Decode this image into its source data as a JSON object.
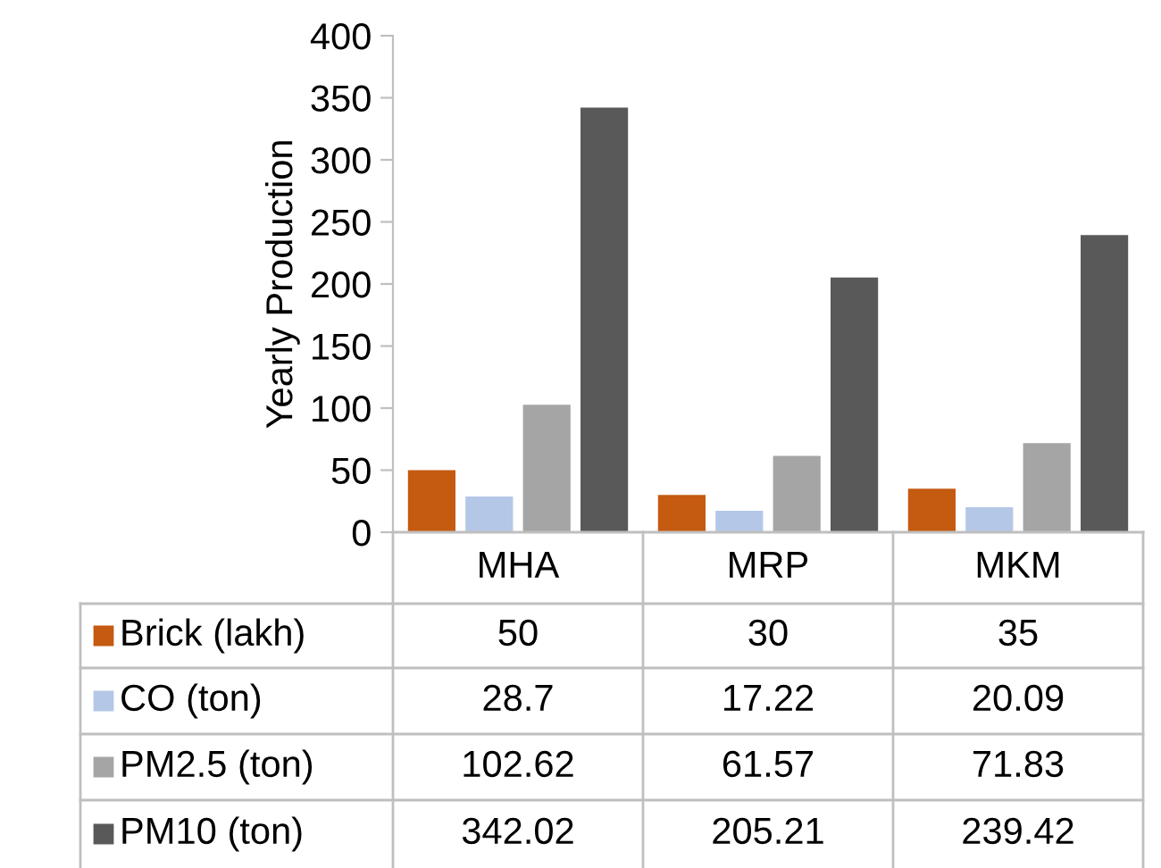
{
  "chart_data": {
    "type": "bar",
    "ylabel": "Yearly Production",
    "categories": [
      "MHA",
      "MRP",
      "MKM"
    ],
    "series": [
      {
        "name": "Brick (lakh)",
        "color": "#c55a11",
        "values": [
          50,
          30,
          35
        ]
      },
      {
        "name": "CO (ton)",
        "color": "#b4c7e7",
        "values": [
          28.7,
          17.22,
          20.09
        ]
      },
      {
        "name": "PM2.5 (ton)",
        "color": "#a5a5a5",
        "values": [
          102.62,
          61.57,
          71.83
        ]
      },
      {
        "name": "PM10 (ton)",
        "color": "#595959",
        "values": [
          342.02,
          205.21,
          239.42
        ]
      }
    ],
    "ylim": [
      0,
      400
    ],
    "yticks": [
      0,
      50,
      100,
      150,
      200,
      250,
      300,
      350,
      400
    ],
    "data_labels": true,
    "grid": false,
    "legend": "bottom"
  }
}
